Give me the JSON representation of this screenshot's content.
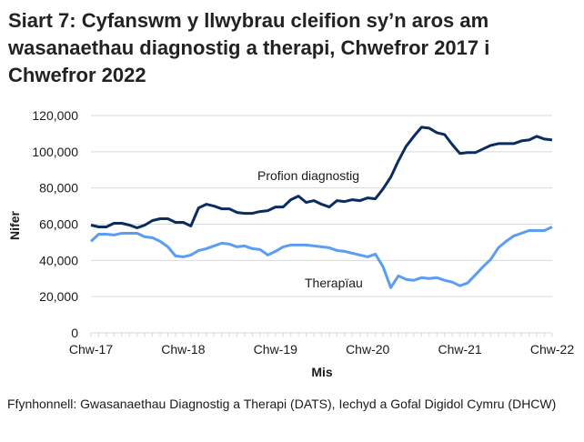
{
  "title": "Siart 7: Cyfanswm y llwybrau cleifion sy’n aros am wasanaethau diagnostig a therapi, Chwefror 2017 i Chwefror 2022",
  "source": "Ffynhonnell: Gwasanaethau Diagnostig a Therapi (DATS), Iechyd a Gofal Digidol Cymru (DHCW)",
  "colors": {
    "diagnostig": "#0b2c5f",
    "therapi": "#5b9df0",
    "grid": "#d9d9d9",
    "axis_text": "#1a1a1a"
  },
  "chart_data": {
    "type": "line",
    "title": "Siart 7: Cyfanswm y llwybrau cleifion sy’n aros am wasanaethau diagnostig a therapi, Chwefror 2017 i Chwefror 2022",
    "xlabel": "Mis",
    "ylabel": "Nifer",
    "ylim": [
      0,
      120000
    ],
    "yticks": [
      0,
      20000,
      40000,
      60000,
      80000,
      100000,
      120000
    ],
    "ytick_labels": [
      "0",
      "20,000",
      "40,000",
      "60,000",
      "80,000",
      "100,000",
      "120,000"
    ],
    "xtick_labels": [
      "Chw-17",
      "Chw-18",
      "Chw-19",
      "Chw-20",
      "Chw-21",
      "Chw-22"
    ],
    "xtick_index": [
      0,
      12,
      24,
      36,
      48,
      60
    ],
    "grid": true,
    "legend": "inline labels",
    "x": [
      "Chw-17",
      "Maw-17",
      "Ebr-17",
      "Mai-17",
      "Meh-17",
      "Gor-17",
      "Aws-17",
      "Med-17",
      "Hyd-17",
      "Tach-17",
      "Rhag-17",
      "Ion-18",
      "Chw-18",
      "Maw-18",
      "Ebr-18",
      "Mai-18",
      "Meh-18",
      "Gor-18",
      "Aws-18",
      "Med-18",
      "Hyd-18",
      "Tach-18",
      "Rhag-18",
      "Ion-19",
      "Chw-19",
      "Maw-19",
      "Ebr-19",
      "Mai-19",
      "Meh-19",
      "Gor-19",
      "Aws-19",
      "Med-19",
      "Hyd-19",
      "Tach-19",
      "Rhag-19",
      "Ion-20",
      "Chw-20",
      "Maw-20",
      "Ebr-20",
      "Mai-20",
      "Meh-20",
      "Gor-20",
      "Aws-20",
      "Med-20",
      "Hyd-20",
      "Tach-20",
      "Rhag-20",
      "Ion-21",
      "Chw-21",
      "Maw-21",
      "Ebr-21",
      "Mai-21",
      "Meh-21",
      "Gor-21",
      "Aws-21",
      "Med-21",
      "Hyd-21",
      "Tach-21",
      "Rhag-21",
      "Ion-22",
      "Chw-22"
    ],
    "series": [
      {
        "name": "Profion diagnostig",
        "label_pos": [
          283,
          198
        ],
        "values": [
          59500,
          58500,
          58500,
          60500,
          60500,
          59500,
          58000,
          59500,
          62000,
          63000,
          63000,
          61000,
          61000,
          59000,
          69000,
          71000,
          70000,
          68500,
          68500,
          66500,
          66000,
          66000,
          67000,
          67500,
          69500,
          69500,
          73500,
          75500,
          72000,
          73000,
          71000,
          69500,
          73000,
          72500,
          73500,
          73000,
          74500,
          74000,
          79500,
          86000,
          95000,
          103000,
          108500,
          113500,
          113000,
          110500,
          109500,
          104000,
          99000,
          99500,
          99500,
          101500,
          103500,
          104500,
          104500,
          104500,
          106000,
          106500,
          108500,
          107000,
          106500
        ]
      },
      {
        "name": "Therapïau",
        "label_pos": [
          335,
          316
        ],
        "values": [
          50500,
          54500,
          54500,
          54000,
          55000,
          55000,
          55000,
          53000,
          52500,
          50500,
          47500,
          42500,
          42000,
          43000,
          45500,
          46500,
          48000,
          49500,
          49000,
          47500,
          48000,
          46500,
          46000,
          43000,
          45000,
          47500,
          48500,
          48500,
          48500,
          48000,
          47500,
          47000,
          45500,
          45000,
          44000,
          43000,
          42000,
          43500,
          36500,
          25000,
          31500,
          29500,
          29000,
          30500,
          30000,
          30500,
          29000,
          28000,
          26000,
          27500,
          32000,
          36500,
          40500,
          47000,
          50500,
          53500,
          55000,
          56500,
          56500,
          56500,
          58500
        ]
      }
    ]
  }
}
